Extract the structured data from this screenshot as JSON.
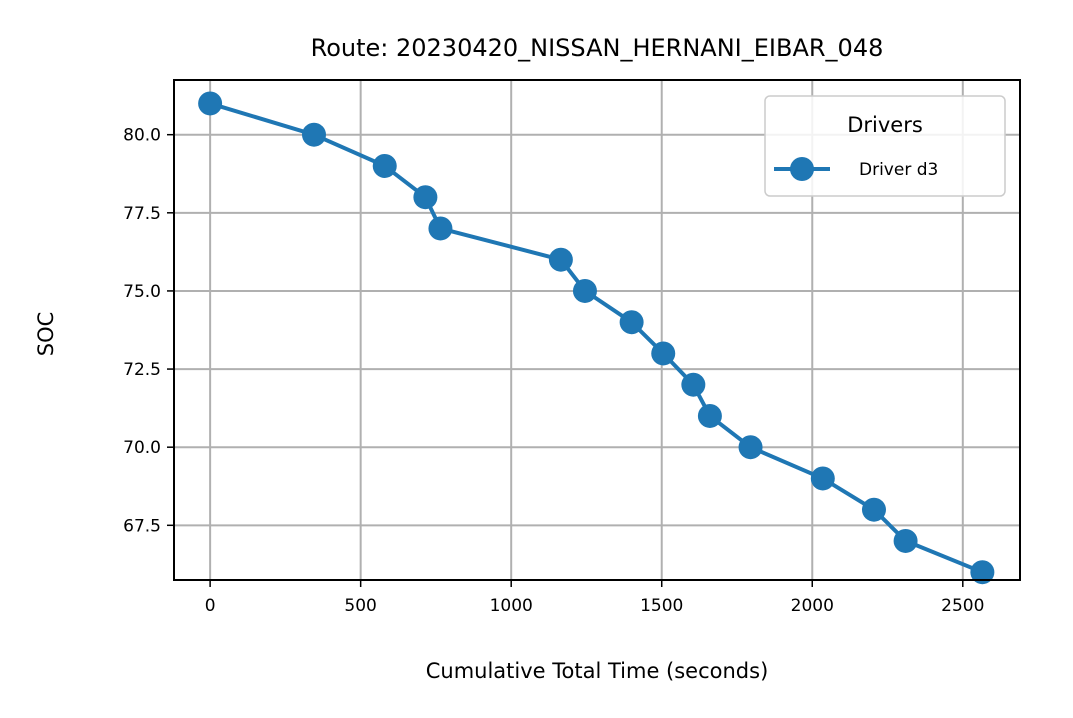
{
  "chart_data": {
    "type": "line",
    "title": "Route: 20230420_NISSAN_HERNANI_EIBAR_048",
    "xlabel": "Cumulative Total Time (seconds)",
    "ylabel": "SOC",
    "xlim": [
      -120,
      2690
    ],
    "ylim": [
      65.75,
      81.75
    ],
    "xticks": [
      0,
      500,
      1000,
      1500,
      2000,
      2500
    ],
    "yticks": [
      67.5,
      70.0,
      72.5,
      75.0,
      77.5,
      80.0
    ],
    "xtick_labels": [
      "0",
      "500",
      "1000",
      "1500",
      "2000",
      "2500"
    ],
    "ytick_labels": [
      "67.5",
      "70.0",
      "72.5",
      "75.0",
      "77.5",
      "80.0"
    ],
    "grid": true,
    "legend": {
      "title": "Drivers",
      "position": "top-right"
    },
    "series": [
      {
        "name": "Driver d3",
        "color": "#1f77b4",
        "marker": "circle",
        "x": [
          0,
          345,
          580,
          715,
          765,
          1165,
          1245,
          1400,
          1505,
          1605,
          1660,
          1795,
          2035,
          2205,
          2310,
          2565
        ],
        "y": [
          81,
          80,
          79,
          78,
          77,
          76,
          75,
          74,
          73,
          72,
          71,
          70,
          69,
          68,
          67,
          66
        ]
      }
    ]
  }
}
